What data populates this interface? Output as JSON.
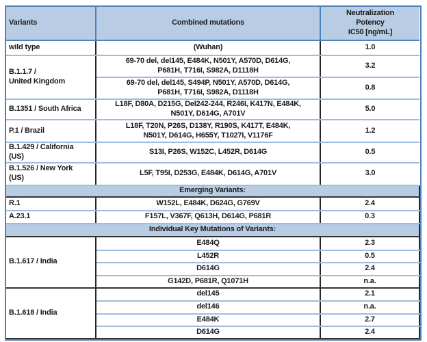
{
  "header": {
    "variants": "Variants",
    "mutations": "Combined mutations",
    "potency_lines": [
      "Neutralization",
      "Potency",
      "IC50 [ng/mL]"
    ]
  },
  "banners": {
    "emerging": "Emerging Variants:",
    "individual": "Individual Key Mutations of Variants:"
  },
  "colors": {
    "header_fill": "#b8cce4",
    "outer_border": "#4f81bd",
    "row_separator": "#9dbde0",
    "dark_border": "#262626"
  },
  "rows": [
    {
      "variant": "wild type",
      "mutations": "(Wuhan)",
      "ic50": "1.0"
    },
    {
      "variant": "B.1.1.7 /\nUnited Kingdom",
      "mutations": "69-70 del, del145, E484K, N501Y, A570D, D614G,\nP681H, T716I, S982A, D1118H",
      "ic50": "3.2"
    },
    {
      "variant": "",
      "mutations": "69-70 del, del145, S494P, N501Y, A570D, D614G,\nP681H, T716I, S982A, D1118H",
      "ic50": "0.8"
    },
    {
      "variant": "B.1351 / South Africa",
      "mutations": "L18F, D80A, D215G, Del242-244, R246I, K417N, E484K,\nN501Y, D614G, A701V",
      "ic50": "5.0"
    },
    {
      "variant": "P.1 / Brazil",
      "mutations": "L18F, T20N, P26S, D138Y, R190S, K417T, E484K,\nN501Y, D614G, H655Y, T1027I, V1176F",
      "ic50": "1.2"
    },
    {
      "variant": "B.1.429 / California\n(US)",
      "mutations": "S13I, P26S, W152C, L452R, D614G",
      "ic50": "0.5"
    },
    {
      "variant": "B.1.526 / New York\n(US)",
      "mutations": "L5F, T95I, D253G, E484K, D614G, A701V",
      "ic50": "3.0"
    },
    {
      "variant": "R.1",
      "mutations": "W152L, E484K, D624G, G769V",
      "ic50": "2.4"
    },
    {
      "variant": "A.23.1",
      "mutations": "F157L, V367F, Q613H, D614G, P681R",
      "ic50": "0.3"
    },
    {
      "variant": "B.1.617 / India",
      "mutations": "E484Q",
      "ic50": "2.3"
    },
    {
      "variant": "",
      "mutations": "L452R",
      "ic50": "0.5"
    },
    {
      "variant": "",
      "mutations": "D614G",
      "ic50": "2.4"
    },
    {
      "variant": "",
      "mutations": "G142D, P681R, Q1071H",
      "ic50": "n.a."
    },
    {
      "variant": "B.1.618 / India",
      "mutations": "del145",
      "ic50": "2.1"
    },
    {
      "variant": "",
      "mutations": "del146",
      "ic50": "n.a."
    },
    {
      "variant": "",
      "mutations": "E484K",
      "ic50": "2.7"
    },
    {
      "variant": "",
      "mutations": "D614G",
      "ic50": "2.4"
    }
  ]
}
